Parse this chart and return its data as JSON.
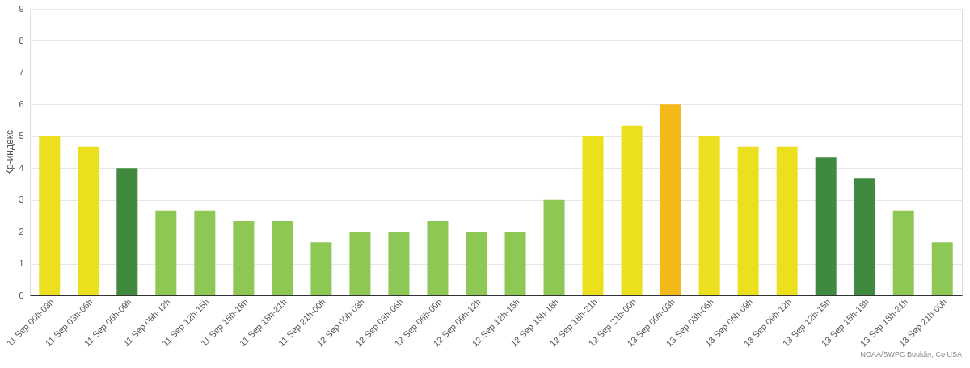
{
  "chart_data": {
    "type": "bar",
    "ylabel": "Кр-индекс",
    "categories": [
      "11 Sep 00h-03h",
      "11 Sep 03h-06h",
      "11 Sep 06h-09h",
      "11 Sep 09h-12h",
      "11 Sep 12h-15h",
      "11 Sep 15h-18h",
      "11 Sep 18h-21h",
      "11 Sep 21h-00h",
      "12 Sep 00h-03h",
      "12 Sep 03h-06h",
      "12 Sep 06h-09h",
      "12 Sep 09h-12h",
      "12 Sep 12h-15h",
      "12 Sep 15h-18h",
      "12 Sep 18h-21h",
      "12 Sep 21h-00h",
      "13 Sep 00h-03h",
      "13 Sep 03h-06h",
      "13 Sep 06h-09h",
      "13 Sep 09h-12h",
      "13 Sep 12h-15h",
      "13 Sep 15h-18h",
      "13 Sep 18h-21h",
      "13 Sep 21h-00h"
    ],
    "values": [
      5,
      4.67,
      4,
      2.67,
      2.67,
      2.33,
      2.33,
      1.67,
      2,
      2,
      2.33,
      2,
      2,
      3,
      5,
      5.33,
      6,
      5,
      4.67,
      4.67,
      4.33,
      3.67,
      2.67,
      1.67
    ],
    "colors": [
      "#ece01e",
      "#ece01e",
      "#3f8a3f",
      "#8dc855",
      "#8dc855",
      "#8dc855",
      "#8dc855",
      "#8dc855",
      "#8dc855",
      "#8dc855",
      "#8dc855",
      "#8dc855",
      "#8dc855",
      "#8dc855",
      "#ece01e",
      "#ece01e",
      "#f4b919",
      "#ece01e",
      "#ece01e",
      "#ece01e",
      "#3f8a3f",
      "#3f8a3f",
      "#8dc855",
      "#8dc855"
    ],
    "ylim": [
      0,
      9
    ],
    "yticks": [
      0,
      1,
      2,
      3,
      4,
      5,
      6,
      7,
      8,
      9
    ],
    "grid": "y",
    "annotations": [
      "NOAA/SWPC Boulder, Co USA"
    ]
  }
}
